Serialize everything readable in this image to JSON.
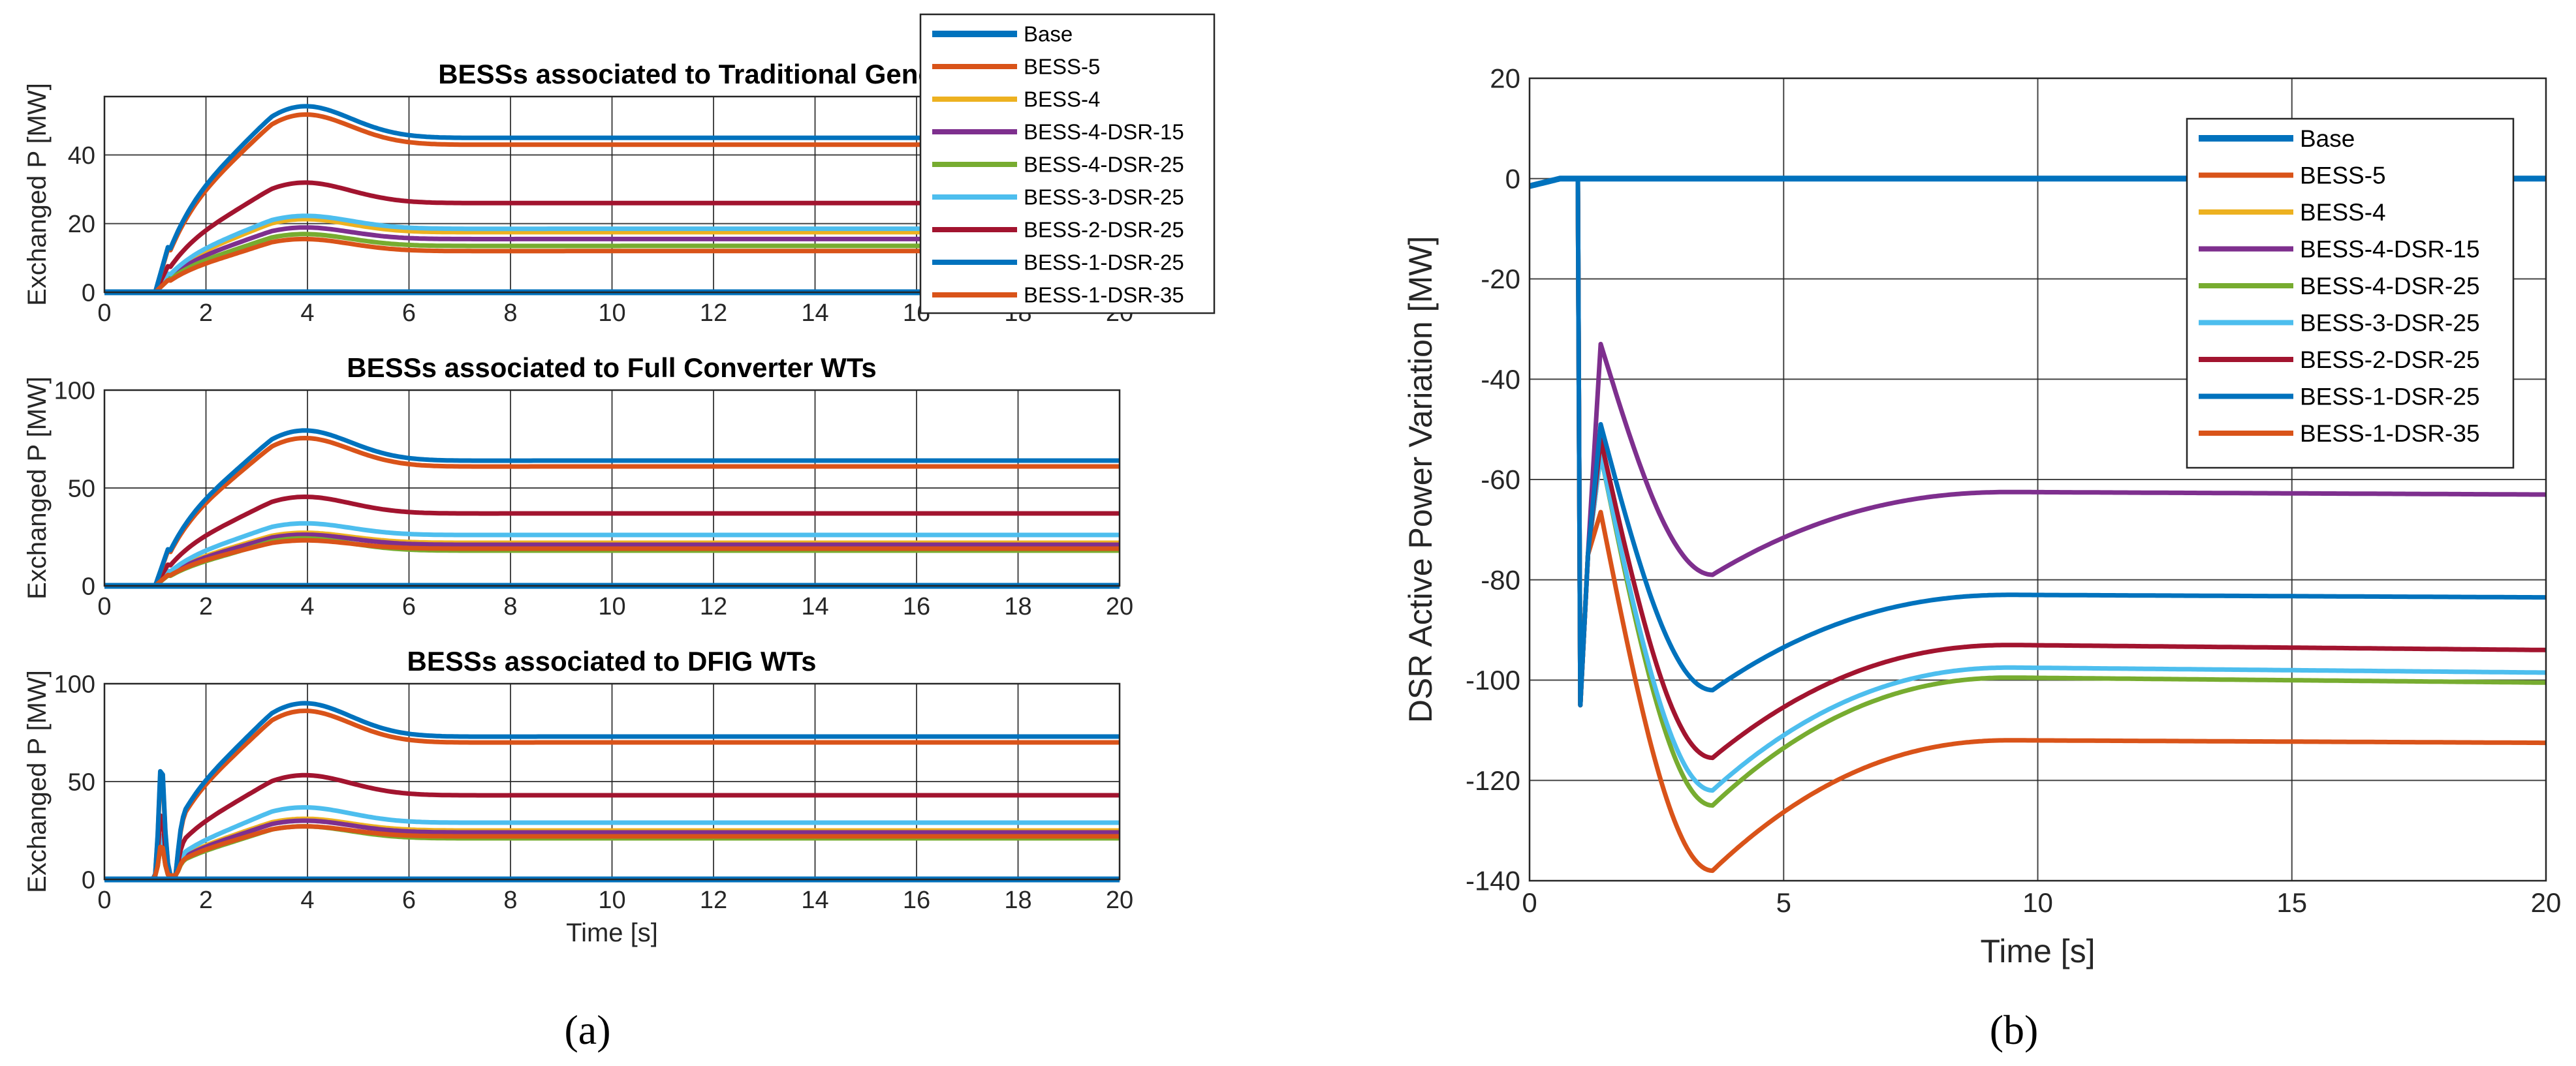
{
  "figure": {
    "caption_a": "(a)",
    "caption_b": "(b)"
  },
  "colors": {
    "Base": "#0072BD",
    "BESS-5": "#D95319",
    "BESS-4": "#EDB120",
    "BESS-4-DSR-15": "#7E2F8E",
    "BESS-4-DSR-25": "#77AC30",
    "BESS-3-DSR-25": "#4DBEEE",
    "BESS-2-DSR-25": "#A2142F",
    "BESS-1-DSR-25": "#0072BD",
    "BESS-1-DSR-35": "#D95319"
  },
  "chart_data": [
    {
      "id": "a1",
      "type": "line",
      "title": "BESSs associated to Traditional Generators",
      "xlabel": "",
      "ylabel": "Exchanged P [MW]",
      "xlim": [
        0,
        20
      ],
      "ylim": [
        0,
        57
      ],
      "xticks": [
        0,
        2,
        4,
        6,
        8,
        10,
        12,
        14,
        16,
        18,
        20
      ],
      "yticks": [
        0,
        20,
        40
      ],
      "grid": true,
      "legend": "top-right",
      "series": [
        {
          "name": "BESS-4",
          "steady": 17.5,
          "peak": 22.0
        },
        {
          "name": "BESS-4-DSR-15",
          "steady": 15.5,
          "peak": 19.5
        },
        {
          "name": "BESS-4-DSR-25",
          "steady": 13.5,
          "peak": 17.5
        },
        {
          "name": "BESS-3-DSR-25",
          "steady": 18.5,
          "peak": 23.0
        },
        {
          "name": "BESS-2-DSR-25",
          "steady": 26.0,
          "peak": 33.0
        },
        {
          "name": "BESS-1-DSR-35",
          "steady": 43.0,
          "peak": 53.5
        },
        {
          "name": "BESS-1-DSR-25",
          "steady": 45.0,
          "peak": 56.0
        },
        {
          "name": "BESS-5",
          "steady": 12.0,
          "peak": 16.0
        },
        {
          "name": "Base",
          "steady": 0,
          "peak": 0
        }
      ]
    },
    {
      "id": "a2",
      "type": "line",
      "title": "BESSs associated to Full Converter WTs",
      "xlabel": "",
      "ylabel": "Exchanged P [MW]",
      "xlim": [
        0,
        20
      ],
      "ylim": [
        0,
        100
      ],
      "xticks": [
        0,
        2,
        4,
        6,
        8,
        10,
        12,
        14,
        16,
        18,
        20
      ],
      "yticks": [
        0,
        50,
        100
      ],
      "grid": true,
      "series": [
        {
          "name": "BESS-4",
          "steady": 22,
          "peak": 28
        },
        {
          "name": "BESS-4-DSR-15",
          "steady": 21,
          "peak": 27
        },
        {
          "name": "BESS-4-DSR-25",
          "steady": 18,
          "peak": 25
        },
        {
          "name": "BESS-3-DSR-25",
          "steady": 26,
          "peak": 33
        },
        {
          "name": "BESS-2-DSR-25",
          "steady": 37,
          "peak": 47
        },
        {
          "name": "BESS-1-DSR-35",
          "steady": 61,
          "peak": 78
        },
        {
          "name": "BESS-1-DSR-25",
          "steady": 64,
          "peak": 82
        },
        {
          "name": "BESS-5",
          "steady": 19,
          "peak": 24
        },
        {
          "name": "Base",
          "steady": 0,
          "peak": 0
        }
      ]
    },
    {
      "id": "a3",
      "type": "line",
      "title": "BESSs associated to DFIG WTs",
      "xlabel": "Time [s]",
      "ylabel": "Exchanged P [MW]",
      "xlim": [
        0,
        20
      ],
      "ylim": [
        0,
        100
      ],
      "xticks": [
        0,
        2,
        4,
        6,
        8,
        10,
        12,
        14,
        16,
        18,
        20
      ],
      "yticks": [
        0,
        50,
        100
      ],
      "grid": true,
      "series": [
        {
          "name": "BESS-4",
          "steady": 25,
          "peak": 32
        },
        {
          "name": "BESS-4-DSR-15",
          "steady": 24,
          "peak": 31
        },
        {
          "name": "BESS-4-DSR-25",
          "steady": 21,
          "peak": 28
        },
        {
          "name": "BESS-3-DSR-25",
          "steady": 29,
          "peak": 38
        },
        {
          "name": "BESS-2-DSR-25",
          "steady": 43,
          "peak": 55
        },
        {
          "name": "BESS-1-DSR-35",
          "steady": 70,
          "peak": 89
        },
        {
          "name": "BESS-1-DSR-25",
          "steady": 73,
          "peak": 93
        },
        {
          "name": "BESS-5",
          "steady": 22,
          "peak": 28
        },
        {
          "name": "Base",
          "steady": 0,
          "peak": 0
        }
      ]
    },
    {
      "id": "b",
      "type": "line",
      "title": "",
      "xlabel": "Time [s]",
      "ylabel": "DSR Active Power Variation [MW]",
      "xlim": [
        0,
        20
      ],
      "ylim": [
        -140,
        20
      ],
      "xticks": [
        0,
        5,
        10,
        15,
        20
      ],
      "yticks": [
        -140,
        -120,
        -100,
        -80,
        -60,
        -40,
        -20,
        0,
        20
      ],
      "grid": true,
      "legend": "top-right",
      "series": [
        {
          "name": "Base",
          "steady": 0
        },
        {
          "name": "BESS-5",
          "steady": 0
        },
        {
          "name": "BESS-4",
          "steady": 0
        },
        {
          "name": "BESS-4-DSR-15",
          "steady": -63,
          "early": -33,
          "trough": -79,
          "recovery": -62.5
        },
        {
          "name": "BESS-4-DSR-25",
          "steady": -100.5,
          "early": -55,
          "trough": -125,
          "recovery": -99.5
        },
        {
          "name": "BESS-3-DSR-25",
          "steady": -98.5,
          "early": -55,
          "trough": -122,
          "recovery": -97.5
        },
        {
          "name": "BESS-2-DSR-25",
          "steady": -94,
          "early": -52,
          "trough": -115.5,
          "recovery": -93
        },
        {
          "name": "BESS-1-DSR-25",
          "steady": -83.5,
          "early": -49,
          "trough": -102,
          "recovery": -83
        },
        {
          "name": "BESS-1-DSR-35",
          "steady": -112.5,
          "early": -66.5,
          "trough": -138,
          "recovery": -112
        }
      ]
    }
  ],
  "legend_a": [
    "Base",
    "BESS-5",
    "BESS-4",
    "BESS-4-DSR-15",
    "BESS-4-DSR-25",
    "BESS-3-DSR-25",
    "BESS-2-DSR-25",
    "BESS-1-DSR-25",
    "BESS-1-DSR-35"
  ],
  "legend_b": [
    "Base",
    "BESS-5",
    "BESS-4",
    "BESS-4-DSR-15",
    "BESS-4-DSR-25",
    "BESS-3-DSR-25",
    "BESS-2-DSR-25",
    "BESS-1-DSR-25",
    "BESS-1-DSR-35"
  ]
}
